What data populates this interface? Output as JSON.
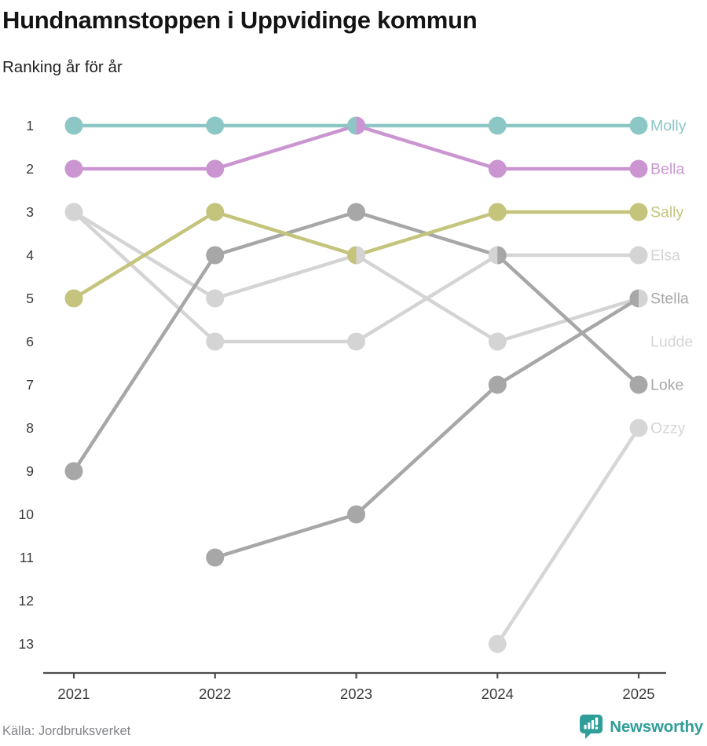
{
  "header": {
    "title": "Hundnamnstoppen i Uppvidinge kommun",
    "subtitle": "Ranking år för år"
  },
  "footer": {
    "source": "Källa: Jordbruksverket",
    "brand": "Newsworthy",
    "brand_color": "#2f9e99",
    "logo_icon": "bar-chart-speech-bubble-icon"
  },
  "chart_data": {
    "type": "line",
    "subtype": "bump-ranking",
    "title": "Hundnamnstoppen i Uppvidinge kommun",
    "xlabel": "",
    "ylabel": "",
    "x": [
      "2021",
      "2022",
      "2023",
      "2024",
      "2025"
    ],
    "y_ticks": [
      "1",
      "2",
      "3",
      "4",
      "5",
      "6",
      "7",
      "8",
      "9",
      "10",
      "11",
      "12",
      "13"
    ],
    "ylim": [
      1,
      13
    ],
    "y_inverted": true,
    "grid": false,
    "legend_position": "labels-at-line-end",
    "axis_color": "#4d4d4d",
    "tick_text_color": "#3a3a3a",
    "series": [
      {
        "name": "Molly",
        "color": "#8cc7c6",
        "ranks": [
          1,
          1,
          1,
          1,
          1
        ],
        "label_rank": 1
      },
      {
        "name": "Bella",
        "color": "#cb95d2",
        "ranks": [
          2,
          2,
          1,
          2,
          2
        ],
        "label_rank": 2
      },
      {
        "name": "Sally",
        "color": "#c4c47c",
        "ranks": [
          5,
          3,
          4,
          3,
          3
        ],
        "label_rank": 3
      },
      {
        "name": "Elsa",
        "color": "#d4d4d4",
        "ranks": [
          3,
          6,
          6,
          4,
          4
        ],
        "label_rank": 4
      },
      {
        "name": "Stella",
        "color": "#a7a7a7",
        "ranks": [
          null,
          11,
          10,
          7,
          5
        ],
        "label_rank": 5
      },
      {
        "name": "Ludde",
        "color": "#d4d4d4",
        "ranks": [
          3,
          5,
          4,
          6,
          5
        ],
        "label_rank": 6
      },
      {
        "name": "Loke",
        "color": "#a7a7a7",
        "ranks": [
          9,
          4,
          3,
          4,
          7
        ],
        "label_rank": 7
      },
      {
        "name": "Ozzy",
        "color": "#d6d6d6",
        "ranks": [
          null,
          null,
          null,
          13,
          8
        ],
        "label_rank": 8
      }
    ]
  }
}
